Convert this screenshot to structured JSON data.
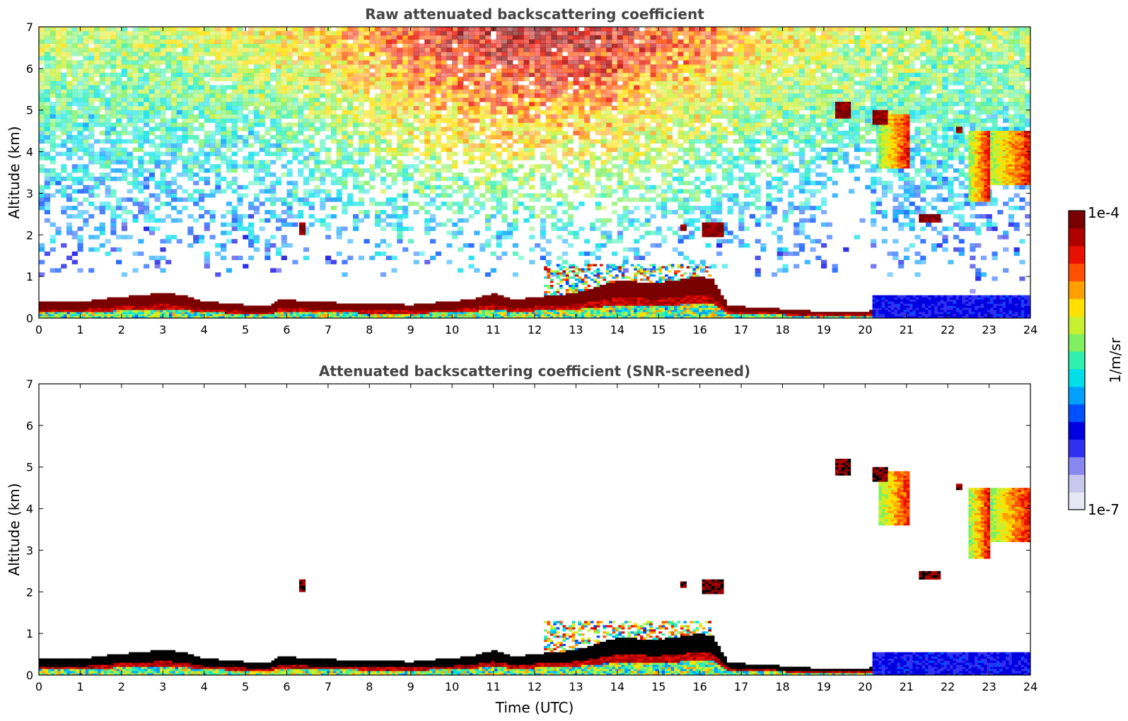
{
  "chart_data": [
    {
      "type": "heatmap",
      "title": "Raw attenuated backscattering coefficient",
      "xlabel": "",
      "ylabel": "Altitude (km)",
      "xlim": [
        0,
        24
      ],
      "ylim": [
        0,
        7
      ],
      "xticks": [
        "0",
        "1",
        "2",
        "3",
        "4",
        "5",
        "6",
        "7",
        "8",
        "9",
        "10",
        "11",
        "12",
        "13",
        "14",
        "15",
        "16",
        "17",
        "18",
        "19",
        "20",
        "21",
        "22",
        "23",
        "24"
      ],
      "yticks": [
        "0",
        "1",
        "2",
        "3",
        "4",
        "5",
        "6",
        "7"
      ],
      "screened": false,
      "features": {
        "boundary_layer_top_km": [
          [
            0,
            0.4
          ],
          [
            1,
            0.38
          ],
          [
            1.8,
            0.5
          ],
          [
            2.5,
            0.55
          ],
          [
            3,
            0.62
          ],
          [
            3.5,
            0.55
          ],
          [
            4,
            0.4
          ],
          [
            5,
            0.32
          ],
          [
            5.6,
            0.3
          ],
          [
            5.8,
            0.45
          ],
          [
            7,
            0.38
          ],
          [
            9,
            0.32
          ],
          [
            10.5,
            0.45
          ],
          [
            11,
            0.6
          ],
          [
            11.5,
            0.45
          ],
          [
            12,
            0.5
          ],
          [
            13,
            0.6
          ],
          [
            14,
            0.9
          ],
          [
            15,
            0.85
          ],
          [
            16,
            1.0
          ],
          [
            16.3,
            0.95
          ],
          [
            16.7,
            0.3
          ],
          [
            18,
            0.22
          ],
          [
            19,
            0.15
          ],
          [
            20,
            0.15
          ],
          [
            20.2,
            0.2
          ]
        ],
        "low_blue_layer": {
          "x": [
            20.2,
            24
          ],
          "top_km": 0.55
        },
        "elevated_clouds": [
          {
            "x": [
              6.3,
              6.45
            ],
            "y": [
              2.0,
              2.3
            ]
          },
          {
            "x": [
              15.55,
              15.7
            ],
            "y": [
              2.1,
              2.25
            ]
          },
          {
            "x": [
              16.05,
              16.55
            ],
            "y": [
              1.95,
              2.3
            ]
          },
          {
            "x": [
              19.3,
              19.65
            ],
            "y": [
              4.8,
              5.2
            ]
          },
          {
            "x": [
              20.2,
              20.55
            ],
            "y": [
              4.65,
              5.0
            ]
          },
          {
            "x": [
              21.3,
              21.8
            ],
            "y": [
              2.3,
              2.5
            ]
          },
          {
            "x": [
              22.2,
              22.35
            ],
            "y": [
              4.45,
              4.6
            ]
          }
        ],
        "cirrus_plumes": [
          {
            "x": [
              20.3,
              21.1
            ],
            "y": [
              3.6,
              4.9
            ]
          },
          {
            "x": [
              22.5,
              23.0
            ],
            "y": [
              2.8,
              4.5
            ]
          },
          {
            "x": [
              23.0,
              24.0
            ],
            "y": [
              3.2,
              4.5
            ]
          }
        ],
        "noise_gradient": "increasing signal noise with altitude; peak near 11-13 UTC above 6 km"
      }
    },
    {
      "type": "heatmap",
      "title": "Attenuated backscattering coefficient (SNR-screened)",
      "xlabel": "Time (UTC)",
      "ylabel": "Altitude (km)",
      "xlim": [
        0,
        24
      ],
      "ylim": [
        0,
        7
      ],
      "xticks": [
        "0",
        "1",
        "2",
        "3",
        "4",
        "5",
        "6",
        "7",
        "8",
        "9",
        "10",
        "11",
        "12",
        "13",
        "14",
        "15",
        "16",
        "17",
        "18",
        "19",
        "20",
        "21",
        "22",
        "23",
        "24"
      ],
      "yticks": [
        "0",
        "1",
        "2",
        "3",
        "4",
        "5",
        "6",
        "7"
      ],
      "screened": true
    }
  ],
  "colorbar": {
    "label": "1/m/sr",
    "max_label": "1e-4",
    "min_label": "1e-7",
    "colors": [
      "#e8e8f4",
      "#c8c8ee",
      "#8888f0",
      "#3030f0",
      "#0000e0",
      "#0050ff",
      "#00a0ff",
      "#00e0e8",
      "#30f0b0",
      "#80f060",
      "#c8f030",
      "#ffe000",
      "#ffa000",
      "#ff5000",
      "#e81000",
      "#b00000",
      "#7a0000"
    ]
  }
}
